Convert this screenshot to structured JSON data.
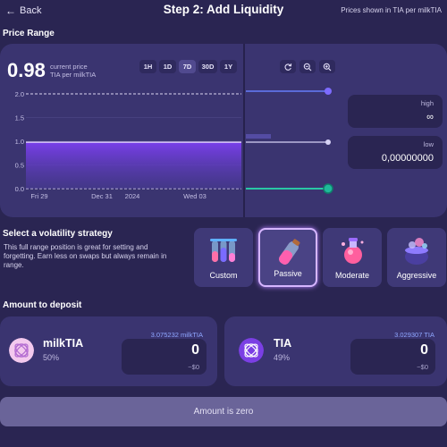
{
  "header": {
    "back_label": "Back",
    "title": "Step 2: Add Liquidity",
    "prices_note": "Prices shown in TIA per milkTIA"
  },
  "price_range": {
    "section_title": "Price Range",
    "current_price": "0.98",
    "current_price_caption": "current price",
    "current_price_unit": "TIA per milkTIA",
    "periods": [
      "1H",
      "1D",
      "7D",
      "30D",
      "1Y"
    ],
    "active_period": "7D",
    "tools": [
      "refresh-icon",
      "zoom-out-icon",
      "zoom-in-icon"
    ],
    "high_label": "high",
    "high_value": "∞",
    "low_label": "low",
    "low_value": "0,00000000"
  },
  "chart_data": {
    "type": "area",
    "y_ticks": [
      "2.0",
      "1.5",
      "1.0",
      "0.5",
      "0.0"
    ],
    "x_ticks": [
      "Fri 29",
      "Dec 31",
      "2024",
      "Wed 03"
    ],
    "ylim": [
      0,
      2.0
    ],
    "series": [
      {
        "values": [
          0.98,
          0.98,
          0.98,
          0.98,
          0.98,
          0.98,
          0.98,
          0.98
        ]
      }
    ],
    "grid": true
  },
  "volatility": {
    "section_title": "Select a volatility strategy",
    "description": "This full range position is great for setting and forgetting. Earn less on swaps but always remain in range.",
    "strategies": [
      {
        "label": "Custom",
        "icon": "test-tubes-icon"
      },
      {
        "label": "Passive",
        "icon": "potion-tube-icon"
      },
      {
        "label": "Moderate",
        "icon": "potion-flask-icon"
      },
      {
        "label": "Aggressive",
        "icon": "cauldron-icon"
      }
    ],
    "active": "Passive"
  },
  "deposit": {
    "section_title": "Amount to deposit",
    "tokens": [
      {
        "name": "milkTIA",
        "percent": "50%",
        "balance": "3.075232 milkTIA",
        "amount": "0",
        "usd": "~$0",
        "color": "#f3c9ee"
      },
      {
        "name": "TIA",
        "percent": "49%",
        "balance": "3.029307 TIA",
        "amount": "0",
        "usd": "~$0",
        "color": "#7b3fe4"
      }
    ]
  },
  "submit_label": "Amount is zero"
}
